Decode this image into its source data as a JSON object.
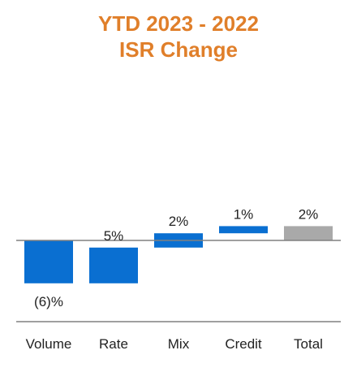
{
  "title_lines": [
    "YTD 2023 - 2022",
    "ISR Change"
  ],
  "colors": {
    "title": "#E07F2A",
    "bar": "#0A6FD1",
    "total_bar": "#A9A9A9",
    "axis": "#808080",
    "text": "#222222"
  },
  "chart_data": {
    "type": "bar",
    "subtype": "waterfall",
    "title": "YTD 2023 - 2022 ISR Change",
    "categories": [
      "Volume",
      "Rate",
      "Mix",
      "Credit",
      "Total"
    ],
    "values": [
      -6,
      5,
      2,
      1,
      2
    ],
    "value_labels": [
      "(6)%",
      "5%",
      "2%",
      "1%",
      "2%"
    ],
    "units": "%",
    "bars": [
      {
        "category": "Volume",
        "start": 0,
        "end": -6
      },
      {
        "category": "Rate",
        "start": -6,
        "end": -1
      },
      {
        "category": "Mix",
        "start": -1,
        "end": 1
      },
      {
        "category": "Credit",
        "start": 1,
        "end": 2
      },
      {
        "category": "Total",
        "start": 0,
        "end": 2
      }
    ],
    "ylim": [
      -12,
      6
    ],
    "legend": "none",
    "grid": false
  }
}
